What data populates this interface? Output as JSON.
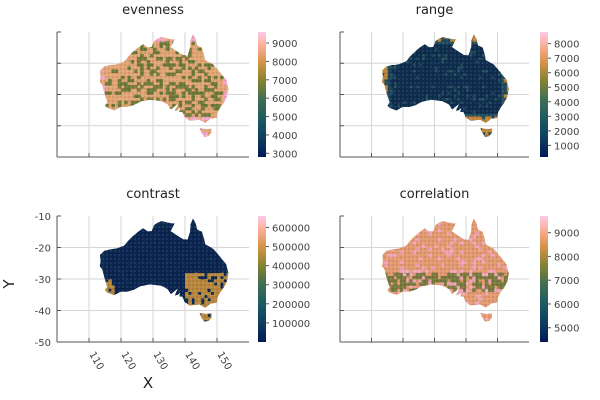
{
  "chart_data": [
    {
      "type": "heatmap",
      "title": "evenness",
      "xlabel": "",
      "ylabel": "",
      "x_ticks": [],
      "y_ticks": [],
      "xlim": [
        100,
        160
      ],
      "ylim": [
        -50,
        -10
      ],
      "colorbar": {
        "range": [
          2800,
          9600
        ],
        "ticks": [
          3000,
          4000,
          5000,
          6000,
          7000,
          8000,
          9000
        ]
      },
      "colormap": "batlow",
      "grid": true,
      "map_colors": {
        "base": "#e2a574",
        "low": "#6f7a3a",
        "high": "#f3a8c4",
        "low_regions": "mixed",
        "high_regions": "edges"
      }
    },
    {
      "type": "heatmap",
      "title": "range",
      "xlabel": "",
      "ylabel": "",
      "x_ticks": [],
      "y_ticks": [],
      "xlim": [
        100,
        160
      ],
      "ylim": [
        -50,
        -10
      ],
      "colorbar": {
        "range": [
          200,
          8800
        ],
        "ticks": [
          1000,
          2000,
          3000,
          4000,
          5000,
          6000,
          7000,
          8000
        ]
      },
      "colormap": "batlow",
      "grid": true,
      "map_colors": {
        "base": "#1f4a5c",
        "low": "#0e2d4f",
        "high": "#c0853b",
        "low_regions": "interior",
        "high_regions": "edges"
      }
    },
    {
      "type": "heatmap",
      "title": "contrast",
      "xlabel": "X",
      "ylabel": "Y",
      "x_ticks": [
        110,
        120,
        130,
        140,
        150
      ],
      "y_ticks": [
        -10,
        -20,
        -30,
        -40,
        -50
      ],
      "xlim": [
        100,
        160
      ],
      "ylim": [
        -50,
        -10
      ],
      "colorbar": {
        "range": [
          0,
          660000
        ],
        "ticks": [
          100000,
          200000,
          300000,
          400000,
          500000,
          600000
        ]
      },
      "colormap": "batlow",
      "grid": true,
      "map_colors": {
        "base": "#0c2a52",
        "low": "#0b2550",
        "high": "#b7883d",
        "low_regions": "interior",
        "high_regions": "coasts"
      }
    },
    {
      "type": "heatmap",
      "title": "correlation",
      "xlabel": "",
      "ylabel": "",
      "x_ticks": [],
      "y_ticks": [],
      "xlim": [
        100,
        160
      ],
      "ylim": [
        -50,
        -10
      ],
      "colorbar": {
        "range": [
          4400,
          9700
        ],
        "ticks": [
          5000,
          6000,
          7000,
          8000,
          9000
        ]
      },
      "colormap": "batlow",
      "grid": true,
      "map_colors": {
        "base": "#e39a70",
        "low": "#7a7a3e",
        "high": "#f0a6b7",
        "low_regions": "south",
        "high_regions": "mixed"
      }
    }
  ]
}
